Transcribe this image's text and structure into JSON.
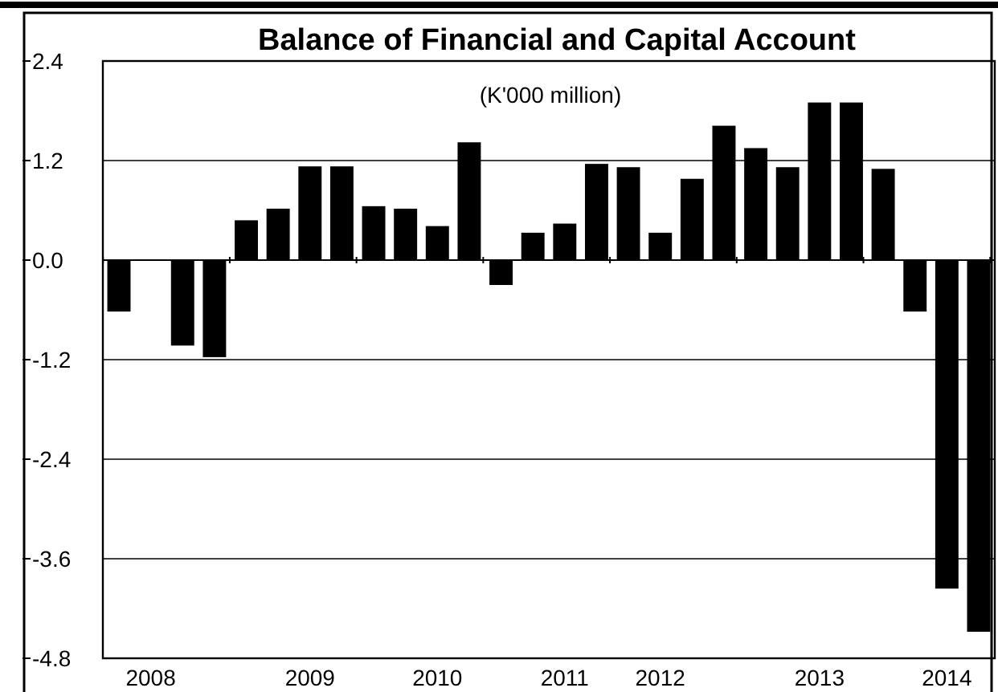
{
  "chart_data": {
    "type": "bar",
    "title": "Balance of Financial and Capital Account",
    "subtitle": "(K'000 million)",
    "categories": [
      null,
      "2008",
      null,
      null,
      null,
      null,
      "2009",
      null,
      null,
      null,
      "2010",
      null,
      null,
      null,
      "2011",
      null,
      null,
      "2012",
      null,
      null,
      null,
      null,
      "2013",
      null,
      null,
      null,
      "2014",
      null
    ],
    "values": [
      -0.62,
      0.0,
      -1.03,
      -1.17,
      0.48,
      0.62,
      1.13,
      1.13,
      0.65,
      0.62,
      0.41,
      1.42,
      -0.3,
      0.33,
      0.44,
      1.16,
      1.12,
      0.33,
      0.98,
      1.62,
      1.35,
      1.12,
      1.9,
      1.9,
      1.1,
      -0.62,
      -3.96,
      -4.48
    ],
    "color": "#000000",
    "ylim": [
      -4.8,
      2.4
    ],
    "yticks": [
      {
        "value": 2.4,
        "label": "2.4"
      },
      {
        "value": 1.2,
        "label": "1.2"
      },
      {
        "value": 0,
        "label": "0.0"
      },
      {
        "value": -1.2,
        "label": "-1.2"
      },
      {
        "value": -2.4,
        "label": "-2.4"
      },
      {
        "value": -3.6,
        "label": "-3.6"
      },
      {
        "value": -4.8,
        "label": "-4.8"
      }
    ],
    "grid": "y"
  }
}
